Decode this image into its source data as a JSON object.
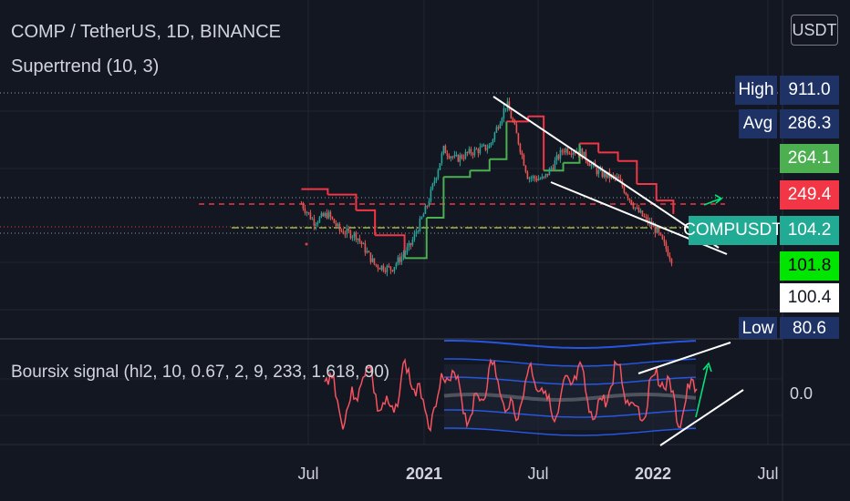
{
  "header": {
    "symbol_title": "COMP / TetherUS, 1D, BINANCE",
    "indicator_title": "Supertrend (10, 3)",
    "oscillator_title": "Boursix signal (hl2, 10, 0.67, 2, 9, 233, 1.618, 90)"
  },
  "currency_button": "USDT",
  "price_tags": {
    "high_label": "High",
    "high_value": "911.0",
    "avg_label": "Avg",
    "avg_value": "286.3",
    "tag_264": "264.1",
    "tag_249": "249.4",
    "symbol_label": "COMPUSDT",
    "symbol_value": "104.2",
    "tag_101": "101.8",
    "tag_100": "100.4",
    "low_label": "Low",
    "low_value": "80.6"
  },
  "oscillator_zero": "0.0",
  "x_axis": {
    "labels": [
      "Jul",
      "2021",
      "Jul",
      "2022",
      "Jul"
    ]
  },
  "colors": {
    "background": "#131722",
    "candle_up": "#26a69a",
    "candle_down": "#ef5350",
    "supertrend_up": "#4caf50",
    "supertrend_down": "#f23645",
    "oscillator_line": "#f7525f",
    "oscillator_bands": "#2962ff",
    "trendline": "#ffffff",
    "arrow": "#00e676",
    "tag_green": "#4caf50",
    "tag_red": "#f23645",
    "tag_teal": "#22ab94",
    "tag_bright_green": "#00e600",
    "tag_navy": "#1e3266"
  },
  "chart_data": {
    "type": "line",
    "title": "COMP / TetherUS, 1D, BINANCE",
    "series": [
      {
        "name": "COMPUSDT",
        "x": [
          "2020-06-20",
          "2020-07-10",
          "2020-08-01",
          "2020-08-20",
          "2020-09-15",
          "2020-10-15",
          "2020-11-10",
          "2020-12-10",
          "2021-01-05",
          "2021-02-01",
          "2021-02-20",
          "2021-03-15",
          "2021-04-15",
          "2021-05-12",
          "2021-05-25",
          "2021-06-15",
          "2021-07-10",
          "2021-08-10",
          "2021-09-05",
          "2021-10-05",
          "2021-11-05",
          "2021-12-05",
          "2022-01-05",
          "2022-02-01"
        ],
        "values": [
          230,
          180,
          200,
          160,
          150,
          100,
          95,
          130,
          220,
          480,
          420,
          460,
          500,
          900,
          640,
          330,
          320,
          480,
          470,
          350,
          320,
          210,
          160,
          104
        ]
      },
      {
        "name": "Supertrend (10, 3)",
        "x": [
          "2020-06-20",
          "2020-08-01",
          "2020-09-15",
          "2020-10-15",
          "2020-12-01",
          "2021-01-05",
          "2021-02-01",
          "2021-03-15",
          "2021-04-15",
          "2021-05-12",
          "2021-06-15",
          "2021-07-10",
          "2021-08-10",
          "2021-09-05",
          "2021-10-05",
          "2021-11-05",
          "2021-12-05",
          "2022-01-05",
          "2022-02-01"
        ],
        "values": [
          280,
          260,
          210,
          150,
          110,
          190,
          330,
          360,
          420,
          700,
          750,
          360,
          400,
          520,
          460,
          410,
          300,
          240,
          200
        ]
      }
    ],
    "annotations": [
      "COMPUSDT 104.2",
      "High 911.0",
      "Low 80.6",
      "Avg 286.3"
    ],
    "oscillator": {
      "name": "Boursix signal (hl2, 10, 0.67, 2, 9, 233, 1.618, 90)",
      "zero_label": "0.0"
    },
    "xlabel": "",
    "ylabel": "",
    "grid": true,
    "legend": "top-left"
  }
}
